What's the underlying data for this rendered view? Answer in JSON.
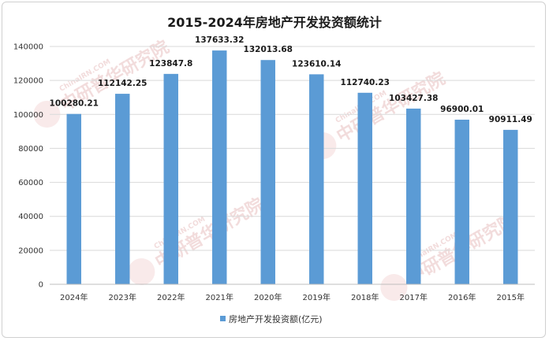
{
  "chart_data": {
    "type": "bar",
    "title": "2015-2024年房地产开发投资额统计",
    "categories": [
      "2024年",
      "2023年",
      "2022年",
      "2021年",
      "2020年",
      "2019年",
      "2018年",
      "2017年",
      "2016年",
      "2015年"
    ],
    "series": [
      {
        "name": "房地产开发投资额(亿元)",
        "values": [
          100280.21,
          112142.25,
          123847.8,
          137633.32,
          132013.68,
          123610.14,
          112740.23,
          103427.38,
          96900.01,
          90911.49
        ],
        "value_labels": [
          "100280.21",
          "112142.25",
          "123847.8",
          "137633.32",
          "132013.68",
          "123610.14",
          "112740.23",
          "103427.38",
          "96900.01",
          "90911.49"
        ]
      }
    ],
    "ylim": [
      0,
      140000
    ],
    "yticks": [
      "0",
      "20000",
      "40000",
      "60000",
      "80000",
      "100000",
      "120000",
      "140000"
    ],
    "grid": true,
    "legend": "bottom",
    "bar_color": "#5b9bd5"
  },
  "watermark": {
    "text": "中研普华研究院",
    "sub": "ChinaIRN.COM"
  }
}
